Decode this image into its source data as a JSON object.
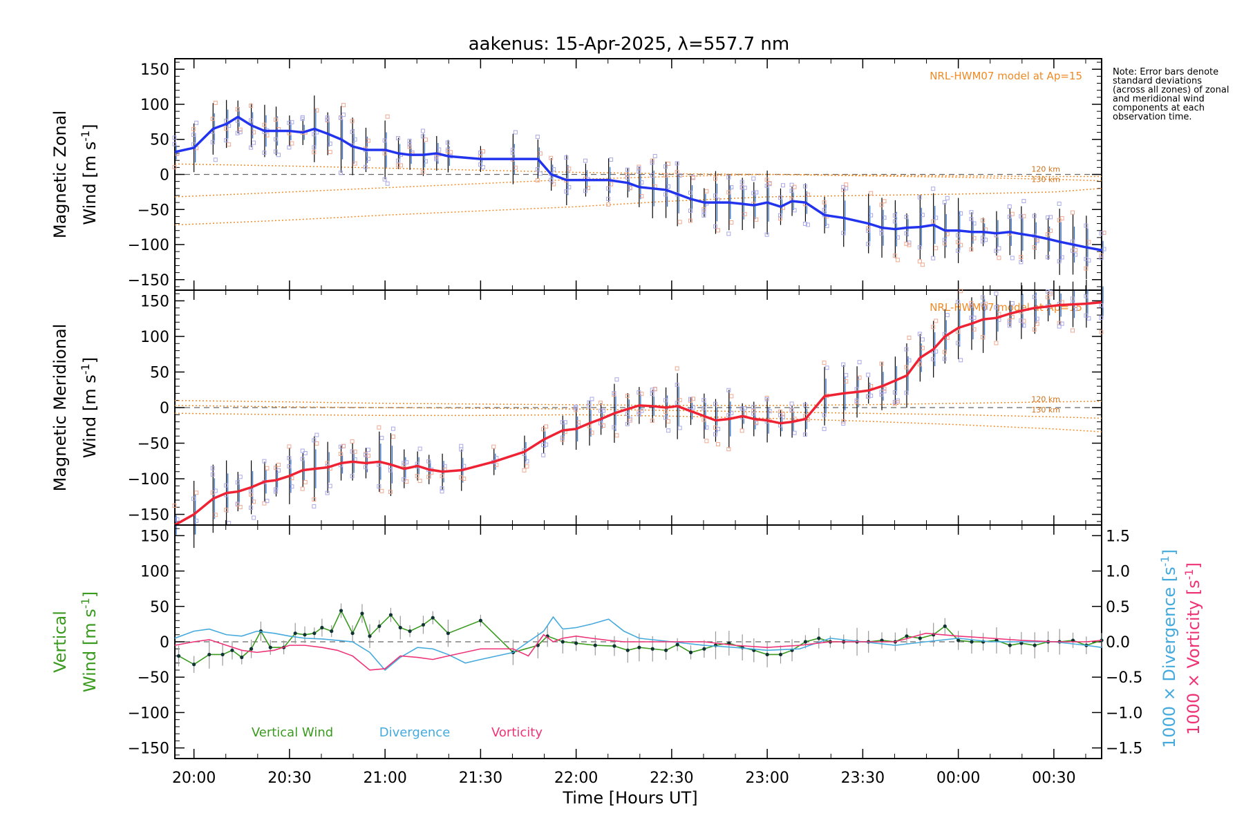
{
  "chart_data": {
    "type": "line",
    "title": "aakenus: 15-Apr-2025, λ=557.7 nm",
    "xlabel": "Time [Hours UT]",
    "xlim": [
      19.9,
      24.75
    ],
    "xticks": [
      {
        "value": 20.0,
        "label": "20:00"
      },
      {
        "value": 20.5,
        "label": "20:30"
      },
      {
        "value": 21.0,
        "label": "21:00"
      },
      {
        "value": 21.5,
        "label": "21:30"
      },
      {
        "value": 22.0,
        "label": "22:00"
      },
      {
        "value": 22.5,
        "label": "22:30"
      },
      {
        "value": 23.0,
        "label": "23:00"
      },
      {
        "value": 23.5,
        "label": "23:30"
      },
      {
        "value": 24.0,
        "label": "00:00"
      },
      {
        "value": 24.5,
        "label": "00:30"
      }
    ],
    "note": "Note: Error bars denote standard deviations (across all zones) of zonal and meridional wind components at each observation time.",
    "panels": [
      {
        "id": "zonal",
        "ylabel_line1": "Magnetic Zonal",
        "ylabel_line2": "Wind [m s",
        "ylabel_sup": "-1",
        "ylabel_close": "]",
        "ylim": [
          -165,
          165
        ],
        "yticks": [
          -150,
          -100,
          -50,
          0,
          50,
          100,
          150
        ],
        "model_label": "NRL-HWM07 model at Ap=15",
        "km_labels": [
          {
            "text": "120 km",
            "y": 8
          },
          {
            "text": "130 km",
            "y": -7
          }
        ],
        "model_curves": [
          {
            "x": [
              19.9,
              20.5,
              21.0,
              21.5,
              22.0,
              22.5,
              23.0,
              23.5,
              24.0,
              24.5,
              24.75
            ],
            "y": [
              15,
              12,
              9,
              6,
              3,
              1,
              0,
              -1,
              -2,
              -3,
              -3
            ]
          },
          {
            "x": [
              19.9,
              20.5,
              21.0,
              21.5,
              22.0,
              22.5,
              23.0,
              23.5,
              24.0,
              24.5,
              24.75
            ],
            "y": [
              -32,
              -25,
              -19,
              -13,
              -7,
              -3,
              0,
              -2,
              -4,
              -7,
              -9
            ]
          },
          {
            "x": [
              19.9,
              20.5,
              21.0,
              21.5,
              22.0,
              22.5,
              23.0,
              23.5,
              24.0,
              24.5,
              24.75
            ],
            "y": [
              -72,
              -65,
              -58,
              -52,
              -46,
              -38,
              -32,
              -30,
              -28,
              -25,
              -20
            ]
          }
        ],
        "series": {
          "name": "Magnetic Zonal Wind",
          "color": "#2233ee",
          "x": [
            19.9,
            20.0,
            20.1,
            20.17,
            20.23,
            20.3,
            20.37,
            20.43,
            20.5,
            20.57,
            20.63,
            20.7,
            20.77,
            20.83,
            20.9,
            21.0,
            21.07,
            21.13,
            21.2,
            21.27,
            21.33,
            21.5,
            21.67,
            21.8,
            21.87,
            21.95,
            22.05,
            22.17,
            22.27,
            22.33,
            22.4,
            22.47,
            22.53,
            22.6,
            22.67,
            22.73,
            22.8,
            22.87,
            22.93,
            23.0,
            23.07,
            23.13,
            23.2,
            23.3,
            23.4,
            23.53,
            23.6,
            23.67,
            23.73,
            23.8,
            23.87,
            23.93,
            24.0,
            24.07,
            24.13,
            24.2,
            24.27,
            24.33,
            24.4,
            24.47,
            24.53,
            24.6,
            24.67,
            24.75
          ],
          "y": [
            32,
            38,
            65,
            72,
            82,
            70,
            62,
            62,
            62,
            60,
            65,
            58,
            50,
            40,
            35,
            35,
            30,
            28,
            28,
            30,
            26,
            22,
            22,
            22,
            0,
            -8,
            -8,
            -8,
            -12,
            -18,
            -20,
            -22,
            -28,
            -35,
            -40,
            -40,
            -40,
            -42,
            -44,
            -40,
            -46,
            -38,
            -40,
            -58,
            -62,
            -70,
            -76,
            -78,
            -76,
            -75,
            -72,
            -80,
            -80,
            -82,
            -82,
            -84,
            -82,
            -85,
            -88,
            -92,
            -96,
            -100,
            -104,
            -108
          ]
        }
      },
      {
        "id": "meridional",
        "ylabel_line1": "Magnetic Meridional",
        "ylabel_line2": "Wind [m s",
        "ylabel_sup": "-1",
        "ylabel_close": "]",
        "ylim": [
          -165,
          165
        ],
        "yticks": [
          -150,
          -100,
          -50,
          0,
          50,
          100,
          150
        ],
        "model_label": "NRL-HWM07 model at Ap=15",
        "km_labels": [
          {
            "text": "120 km",
            "y": 12
          },
          {
            "text": "130 km",
            "y": -3
          }
        ],
        "model_curves": [
          {
            "x": [
              19.9,
              20.5,
              21.0,
              21.5,
              22.0,
              22.5,
              23.0,
              23.5,
              24.0,
              24.5,
              24.75
            ],
            "y": [
              10,
              8,
              6,
              5,
              4,
              3,
              3,
              4,
              6,
              8,
              9
            ]
          },
          {
            "x": [
              19.9,
              20.5,
              21.0,
              21.5,
              22.0,
              22.5,
              23.0,
              23.5,
              24.0,
              24.5,
              24.75
            ],
            "y": [
              3,
              1,
              0,
              -1,
              -2,
              -4,
              -6,
              -8,
              -10,
              -13,
              -15
            ]
          },
          {
            "x": [
              19.9,
              20.5,
              21.0,
              21.5,
              22.0,
              22.5,
              23.0,
              23.5,
              24.0,
              24.5,
              24.75
            ],
            "y": [
              -8,
              -10,
              -11,
              -11,
              -10,
              -12,
              -15,
              -19,
              -24,
              -30,
              -34
            ]
          }
        ],
        "series": {
          "name": "Magnetic Meridional Wind",
          "color": "#ee2233",
          "x": [
            19.9,
            20.0,
            20.1,
            20.17,
            20.23,
            20.3,
            20.37,
            20.43,
            20.5,
            20.57,
            20.63,
            20.7,
            20.77,
            20.83,
            20.9,
            20.97,
            21.03,
            21.1,
            21.17,
            21.23,
            21.3,
            21.4,
            21.57,
            21.73,
            21.83,
            21.93,
            22.0,
            22.07,
            22.13,
            22.2,
            22.27,
            22.33,
            22.4,
            22.47,
            22.53,
            22.6,
            22.67,
            22.73,
            22.8,
            22.87,
            22.93,
            23.0,
            23.07,
            23.13,
            23.2,
            23.3,
            23.4,
            23.47,
            23.53,
            23.6,
            23.67,
            23.73,
            23.8,
            23.87,
            23.93,
            24.0,
            24.07,
            24.13,
            24.2,
            24.27,
            24.33,
            24.4,
            24.47,
            24.53,
            24.6,
            24.67,
            24.75
          ],
          "y": [
            -165,
            -150,
            -128,
            -120,
            -118,
            -112,
            -104,
            -102,
            -96,
            -88,
            -86,
            -84,
            -78,
            -76,
            -78,
            -76,
            -80,
            -86,
            -82,
            -87,
            -90,
            -88,
            -76,
            -62,
            -45,
            -32,
            -30,
            -22,
            -16,
            -8,
            -2,
            3,
            2,
            0,
            2,
            -5,
            -12,
            -18,
            -16,
            -12,
            -16,
            -18,
            -22,
            -20,
            -16,
            16,
            20,
            22,
            24,
            30,
            38,
            45,
            70,
            82,
            100,
            112,
            118,
            124,
            126,
            132,
            136,
            140,
            142,
            144,
            145,
            146,
            148
          ]
        }
      },
      {
        "id": "vertical",
        "ylabel_line1": "Vertical",
        "ylabel_line2": "Wind [m s",
        "ylabel_sup": "-1",
        "ylabel_close": "]",
        "ylim": [
          -165,
          165
        ],
        "yticks": [
          -150,
          -100,
          -50,
          0,
          50,
          100,
          150
        ],
        "right_axis": {
          "ylim": [
            -1.65,
            1.65
          ],
          "yticks": [
            -1.5,
            -1.0,
            -0.5,
            0.0,
            0.5,
            1.0,
            1.5
          ],
          "yticklabels": [
            "−1.5",
            "−1.0",
            "−0.5",
            "0.0",
            "0.5",
            "1.0",
            "1.5"
          ],
          "label_divergence": "1000 × Divergence [s",
          "label_vorticity": "1000 × Vorticity [s",
          "label_sup": "-1",
          "label_close": "]"
        },
        "legend": [
          {
            "label": "Vertical Wind",
            "color": "#3a9a1e"
          },
          {
            "label": "Divergence",
            "color": "#44aadd"
          },
          {
            "label": "Vorticity",
            "color": "#ee3377"
          }
        ],
        "series": [
          {
            "name": "Vertical Wind",
            "color": "#3a9a1e",
            "axis": "left",
            "x": [
              19.92,
              20.0,
              20.08,
              20.15,
              20.2,
              20.25,
              20.3,
              20.35,
              20.4,
              20.47,
              20.53,
              20.58,
              20.63,
              20.67,
              20.72,
              20.77,
              20.83,
              20.88,
              20.92,
              20.97,
              21.03,
              21.08,
              21.13,
              21.2,
              21.25,
              21.33,
              21.5,
              21.67,
              21.8,
              21.85,
              21.93,
              22.0,
              22.1,
              22.2,
              22.27,
              22.33,
              22.4,
              22.47,
              22.53,
              22.6,
              22.67,
              22.73,
              22.8,
              22.87,
              22.93,
              23.0,
              23.07,
              23.13,
              23.2,
              23.27,
              23.33,
              23.4,
              23.47,
              23.53,
              23.6,
              23.67,
              23.73,
              23.8,
              23.87,
              23.93,
              24.0,
              24.07,
              24.13,
              24.2,
              24.27,
              24.33,
              24.4,
              24.47,
              24.53,
              24.6,
              24.67,
              24.75
            ],
            "y": [
              -20,
              -32,
              -18,
              -18,
              -12,
              -22,
              -10,
              15,
              -8,
              -8,
              12,
              10,
              12,
              20,
              15,
              44,
              12,
              40,
              8,
              22,
              38,
              20,
              15,
              24,
              34,
              12,
              30,
              -15,
              -5,
              8,
              0,
              -2,
              -5,
              -6,
              -12,
              -8,
              -10,
              -12,
              -4,
              -15,
              -10,
              -5,
              -2,
              -8,
              -12,
              -18,
              -18,
              -12,
              0,
              5,
              0,
              0,
              0,
              0,
              2,
              0,
              8,
              5,
              10,
              22,
              2,
              0,
              0,
              2,
              -5,
              -2,
              -5,
              0,
              0,
              2,
              -5,
              2
            ]
          },
          {
            "name": "Divergence",
            "color": "#44aadd",
            "axis": "right",
            "x": [
              19.9,
              20.0,
              20.08,
              20.17,
              20.25,
              20.33,
              20.42,
              20.5,
              20.58,
              20.67,
              20.75,
              20.83,
              20.92,
              21.0,
              21.08,
              21.17,
              21.25,
              21.33,
              21.42,
              21.5,
              21.67,
              21.75,
              21.83,
              21.88,
              21.93,
              22.0,
              22.08,
              22.17,
              22.25,
              22.33,
              22.5,
              22.67,
              22.83,
              23.0,
              23.17,
              23.33,
              23.5,
              23.67,
              23.83,
              24.0,
              24.17,
              24.33,
              24.5,
              24.67,
              24.75
            ],
            "y": [
              0.05,
              0.15,
              0.18,
              0.1,
              0.08,
              0.15,
              0.12,
              0.08,
              0.05,
              0.04,
              0.02,
              0.0,
              -0.15,
              -0.4,
              -0.22,
              -0.08,
              -0.1,
              -0.18,
              -0.3,
              -0.25,
              -0.15,
              0.0,
              0.15,
              0.35,
              0.18,
              0.2,
              0.25,
              0.32,
              0.15,
              0.05,
              0.0,
              -0.05,
              -0.08,
              -0.12,
              -0.1,
              0.05,
              0.0,
              -0.05,
              0.0,
              0.05,
              0.0,
              0.0,
              0.0,
              -0.05,
              -0.08
            ]
          },
          {
            "name": "Vorticity",
            "color": "#ee3377",
            "axis": "right",
            "x": [
              19.9,
              20.0,
              20.08,
              20.17,
              20.25,
              20.33,
              20.42,
              20.5,
              20.58,
              20.67,
              20.75,
              20.83,
              20.92,
              21.0,
              21.08,
              21.17,
              21.25,
              21.33,
              21.5,
              21.67,
              21.75,
              21.83,
              21.88,
              21.93,
              22.0,
              22.08,
              22.17,
              22.25,
              22.33,
              22.5,
              22.67,
              22.83,
              23.0,
              23.17,
              23.33,
              23.5,
              23.67,
              23.83,
              24.0,
              24.17,
              24.33,
              24.5,
              24.67,
              24.75
            ],
            "y": [
              -0.05,
              0.0,
              0.03,
              -0.05,
              -0.12,
              -0.15,
              -0.12,
              -0.05,
              -0.05,
              -0.08,
              -0.12,
              -0.2,
              -0.4,
              -0.38,
              -0.2,
              -0.22,
              -0.25,
              -0.2,
              -0.1,
              -0.1,
              -0.2,
              0.1,
              0.0,
              0.05,
              0.08,
              0.05,
              0.02,
              0.0,
              0.0,
              0.0,
              0.0,
              -0.05,
              -0.08,
              -0.05,
              0.0,
              0.0,
              0.0,
              0.12,
              0.08,
              0.05,
              0.02,
              0.0,
              0.0,
              0.02
            ]
          }
        ]
      }
    ]
  }
}
